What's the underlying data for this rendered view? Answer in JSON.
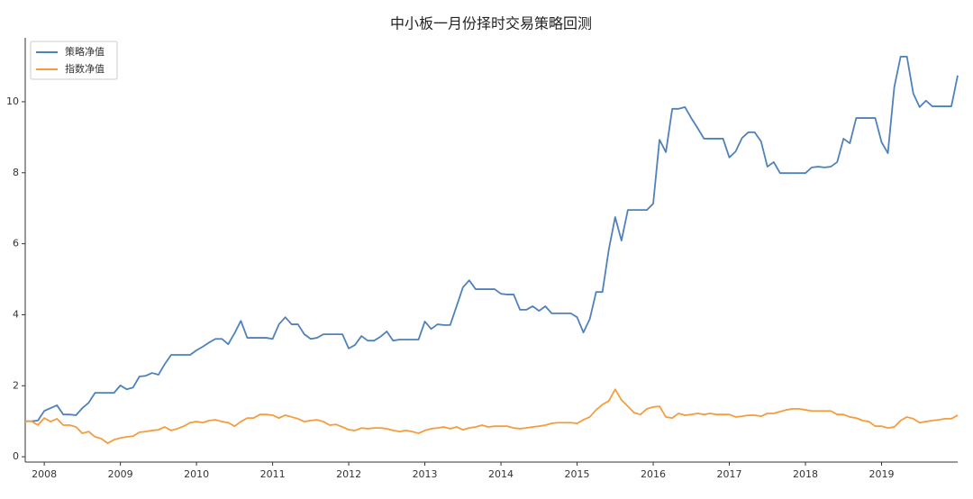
{
  "chart_data": {
    "type": "line",
    "title": "中小板一月份择时交易策略回测",
    "x": [
      2007.75,
      2007.833,
      2007.917,
      2008,
      2008.083,
      2008.167,
      2008.25,
      2008.333,
      2008.417,
      2008.5,
      2008.583,
      2008.667,
      2008.75,
      2008.833,
      2008.917,
      2009,
      2009.083,
      2009.167,
      2009.25,
      2009.333,
      2009.417,
      2009.5,
      2009.583,
      2009.667,
      2009.75,
      2009.833,
      2009.917,
      2010,
      2010.083,
      2010.167,
      2010.25,
      2010.333,
      2010.417,
      2010.5,
      2010.583,
      2010.667,
      2010.75,
      2010.833,
      2010.917,
      2011,
      2011.083,
      2011.167,
      2011.25,
      2011.333,
      2011.417,
      2011.5,
      2011.583,
      2011.667,
      2011.75,
      2011.833,
      2011.917,
      2012,
      2012.083,
      2012.167,
      2012.25,
      2012.333,
      2012.417,
      2012.5,
      2012.583,
      2012.667,
      2012.75,
      2012.833,
      2012.917,
      2013,
      2013.083,
      2013.167,
      2013.25,
      2013.333,
      2013.417,
      2013.5,
      2013.583,
      2013.667,
      2013.75,
      2013.833,
      2013.917,
      2014,
      2014.083,
      2014.167,
      2014.25,
      2014.333,
      2014.417,
      2014.5,
      2014.583,
      2014.667,
      2014.75,
      2014.833,
      2014.917,
      2015,
      2015.083,
      2015.167,
      2015.25,
      2015.333,
      2015.417,
      2015.5,
      2015.583,
      2015.667,
      2015.75,
      2015.833,
      2015.917,
      2016,
      2016.083,
      2016.167,
      2016.25,
      2016.333,
      2016.417,
      2016.5,
      2016.583,
      2016.667,
      2016.75,
      2016.833,
      2016.917,
      2017,
      2017.083,
      2017.167,
      2017.25,
      2017.333,
      2017.417,
      2017.5,
      2017.583,
      2017.667,
      2017.75,
      2017.833,
      2017.917,
      2018,
      2018.083,
      2018.167,
      2018.25,
      2018.333,
      2018.417,
      2018.5,
      2018.583,
      2018.667,
      2018.75,
      2018.833,
      2018.917,
      2019,
      2019.083,
      2019.167,
      2019.25,
      2019.333,
      2019.417,
      2019.5,
      2019.583,
      2019.667,
      2019.75,
      2019.833,
      2019.917,
      2020
    ],
    "series": [
      {
        "name": "策略净值",
        "color": "#4f81bd",
        "values": [
          1.0,
          1.0,
          1.02,
          1.29,
          1.37,
          1.45,
          1.19,
          1.19,
          1.17,
          1.37,
          1.52,
          1.8,
          1.8,
          1.8,
          1.8,
          2.01,
          1.9,
          1.95,
          2.26,
          2.28,
          2.36,
          2.31,
          2.61,
          2.87,
          2.87,
          2.87,
          2.87,
          3.0,
          3.1,
          3.22,
          3.32,
          3.32,
          3.17,
          3.48,
          3.83,
          3.35,
          3.35,
          3.35,
          3.35,
          3.32,
          3.73,
          3.93,
          3.73,
          3.73,
          3.45,
          3.32,
          3.35,
          3.45,
          3.45,
          3.45,
          3.45,
          3.05,
          3.15,
          3.4,
          3.27,
          3.27,
          3.38,
          3.53,
          3.27,
          3.3,
          3.3,
          3.3,
          3.3,
          3.81,
          3.6,
          3.73,
          3.71,
          3.71,
          4.24,
          4.77,
          4.97,
          4.72,
          4.72,
          4.72,
          4.72,
          4.59,
          4.57,
          4.57,
          4.14,
          4.14,
          4.24,
          4.11,
          4.24,
          4.04,
          4.04,
          4.04,
          4.04,
          3.93,
          3.5,
          3.88,
          4.64,
          4.64,
          5.84,
          6.75,
          6.09,
          6.95,
          6.95,
          6.95,
          6.95,
          7.13,
          8.93,
          8.58,
          9.8,
          9.8,
          9.85,
          9.54,
          9.26,
          8.96,
          8.96,
          8.96,
          8.96,
          8.43,
          8.6,
          8.98,
          9.14,
          9.14,
          8.88,
          8.17,
          8.3,
          7.99,
          7.99,
          7.99,
          7.99,
          7.99,
          8.15,
          8.17,
          8.15,
          8.17,
          8.3,
          8.96,
          8.83,
          9.54,
          9.54,
          9.54,
          9.54,
          8.86,
          8.55,
          10.41,
          11.27,
          11.27,
          10.23,
          9.85,
          10.03,
          9.87,
          9.87,
          9.87,
          9.87,
          10.74
        ]
      },
      {
        "name": "指数净值",
        "color": "#f59d3d",
        "values": [
          1.0,
          1.0,
          0.89,
          1.09,
          0.99,
          1.07,
          0.89,
          0.89,
          0.84,
          0.66,
          0.71,
          0.56,
          0.51,
          0.38,
          0.48,
          0.53,
          0.56,
          0.58,
          0.69,
          0.71,
          0.74,
          0.76,
          0.84,
          0.74,
          0.79,
          0.86,
          0.96,
          0.99,
          0.96,
          1.02,
          1.04,
          0.99,
          0.96,
          0.86,
          0.99,
          1.09,
          1.09,
          1.19,
          1.19,
          1.17,
          1.09,
          1.17,
          1.12,
          1.07,
          0.99,
          1.02,
          1.04,
          0.99,
          0.89,
          0.91,
          0.84,
          0.76,
          0.74,
          0.81,
          0.79,
          0.81,
          0.81,
          0.79,
          0.74,
          0.71,
          0.74,
          0.71,
          0.66,
          0.74,
          0.79,
          0.81,
          0.84,
          0.79,
          0.84,
          0.76,
          0.81,
          0.84,
          0.89,
          0.84,
          0.86,
          0.86,
          0.86,
          0.81,
          0.79,
          0.81,
          0.84,
          0.86,
          0.89,
          0.94,
          0.96,
          0.96,
          0.96,
          0.94,
          1.04,
          1.12,
          1.32,
          1.47,
          1.57,
          1.9,
          1.6,
          1.42,
          1.24,
          1.19,
          1.35,
          1.4,
          1.42,
          1.12,
          1.09,
          1.22,
          1.17,
          1.19,
          1.22,
          1.19,
          1.22,
          1.19,
          1.19,
          1.19,
          1.12,
          1.14,
          1.17,
          1.17,
          1.14,
          1.22,
          1.22,
          1.27,
          1.32,
          1.35,
          1.35,
          1.32,
          1.29,
          1.29,
          1.29,
          1.29,
          1.19,
          1.19,
          1.12,
          1.09,
          1.02,
          0.99,
          0.86,
          0.86,
          0.81,
          0.84,
          1.02,
          1.12,
          1.07,
          0.96,
          0.99,
          1.02,
          1.04,
          1.07,
          1.07,
          1.17
        ]
      }
    ],
    "xlim": [
      2007.75,
      2020
    ],
    "xticks": [
      2008,
      2009,
      2010,
      2011,
      2012,
      2013,
      2014,
      2015,
      2016,
      2017,
      2018,
      2019
    ],
    "ylim": [
      -0.15,
      11.8
    ],
    "yticks": [
      0,
      2,
      4,
      6,
      8,
      10
    ],
    "legend": "upper-left"
  }
}
